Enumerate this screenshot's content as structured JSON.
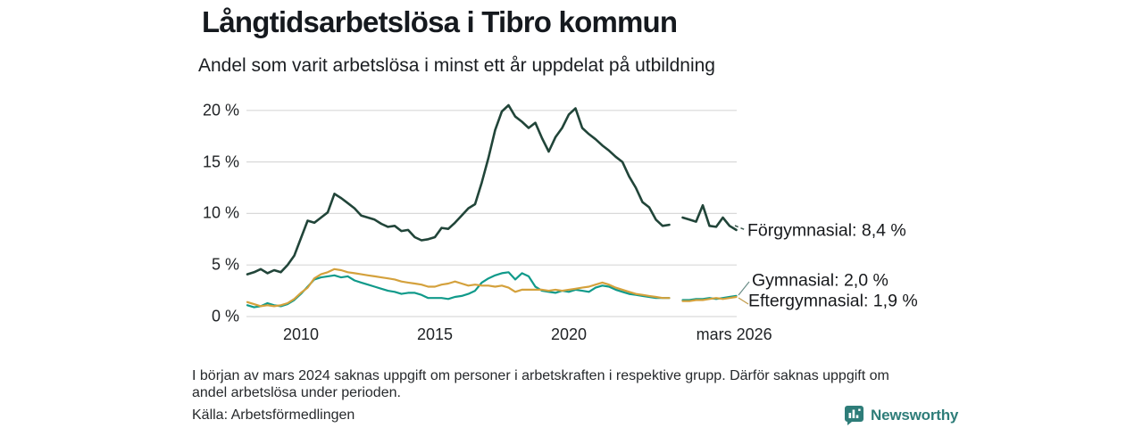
{
  "header": {
    "title": "Långtidsarbetslösa i Tibro kommun",
    "subtitle": "Andel som varit arbetslösa i minst ett år uppdelat på utbildning"
  },
  "chart_data": {
    "type": "line",
    "title": "Långtidsarbetslösa i Tibro kommun",
    "subtitle": "Andel som varit arbetslösa i minst ett år uppdelat på utbildning",
    "unit": "%",
    "grid": "horizontal",
    "legend_position": "right-edge-annotations",
    "xlim": [
      2008,
      2026.4
    ],
    "ylim": [
      0,
      21
    ],
    "missing_period_note": "mars 2024 (gap i samtliga serier)",
    "yticks": [
      {
        "value": 0,
        "label": "0 %"
      },
      {
        "value": 5,
        "label": "5 %"
      },
      {
        "value": 10,
        "label": "10 %"
      },
      {
        "value": 15,
        "label": "15 %"
      },
      {
        "value": 20,
        "label": "20 %"
      }
    ],
    "xticks": [
      {
        "value": 2010,
        "label": "2010"
      },
      {
        "value": 2015,
        "label": "2015"
      },
      {
        "value": 2020,
        "label": "2020"
      },
      {
        "value": 2026.17,
        "label": "mars 2026"
      }
    ],
    "x": [
      2008,
      2008.25,
      2008.5,
      2008.75,
      2009,
      2009.25,
      2009.5,
      2009.75,
      2010,
      2010.25,
      2010.5,
      2010.75,
      2011,
      2011.25,
      2011.5,
      2011.75,
      2012,
      2012.25,
      2012.5,
      2012.75,
      2013,
      2013.25,
      2013.5,
      2013.75,
      2014,
      2014.25,
      2014.5,
      2014.75,
      2015,
      2015.25,
      2015.5,
      2015.75,
      2016,
      2016.25,
      2016.5,
      2016.75,
      2017,
      2017.25,
      2017.5,
      2017.75,
      2018,
      2018.25,
      2018.5,
      2018.75,
      2019,
      2019.25,
      2019.5,
      2019.75,
      2020,
      2020.25,
      2020.5,
      2020.75,
      2021,
      2021.25,
      2021.5,
      2021.75,
      2022,
      2022.25,
      2022.5,
      2022.75,
      2023,
      2023.25,
      2023.5,
      2023.75,
      2024,
      2024.25,
      2024.5,
      2024.75,
      2025,
      2025.25,
      2025.5,
      2025.75,
      2026,
      2026.25
    ],
    "series": [
      {
        "name": "Förgymnasial",
        "annotation": "Förgymnasial: 8,4 %",
        "latest_value": "8,4 %",
        "color": "#214539",
        "values": [
          4.1,
          4.3,
          4.6,
          4.2,
          4.5,
          4.3,
          5.0,
          5.9,
          7.6,
          9.3,
          9.1,
          9.6,
          10.1,
          11.9,
          11.5,
          11.0,
          10.5,
          9.8,
          9.6,
          9.4,
          9.0,
          8.7,
          8.8,
          8.3,
          8.4,
          7.7,
          7.4,
          7.5,
          7.7,
          8.6,
          8.5,
          9.1,
          9.8,
          10.5,
          10.9,
          13.0,
          15.4,
          18.1,
          19.9,
          20.5,
          19.4,
          18.9,
          18.3,
          18.8,
          17.3,
          16.0,
          17.4,
          18.3,
          19.6,
          20.2,
          18.3,
          17.7,
          17.2,
          16.6,
          16.1,
          15.5,
          15.0,
          13.6,
          12.5,
          11.1,
          10.6,
          9.4,
          8.8,
          8.9,
          null,
          9.6,
          9.4,
          9.2,
          10.8,
          8.8,
          8.7,
          9.6,
          8.8,
          8.4
        ]
      },
      {
        "name": "Gymnasial",
        "annotation": "Gymnasial: 2,0 %",
        "latest_value": "2,0 %",
        "color": "#109a8a",
        "values": [
          1.1,
          0.9,
          1.0,
          1.3,
          1.1,
          1.0,
          1.2,
          1.6,
          2.2,
          2.9,
          3.6,
          3.8,
          3.9,
          4.0,
          3.8,
          3.9,
          3.5,
          3.3,
          3.1,
          2.9,
          2.7,
          2.5,
          2.4,
          2.2,
          2.3,
          2.3,
          2.1,
          1.8,
          1.8,
          1.8,
          1.7,
          1.9,
          2.0,
          2.2,
          2.5,
          3.3,
          3.7,
          4.0,
          4.2,
          4.3,
          3.6,
          4.2,
          3.9,
          2.9,
          2.5,
          2.4,
          2.3,
          2.5,
          2.4,
          2.6,
          2.5,
          2.4,
          2.8,
          3.0,
          2.9,
          2.6,
          2.4,
          2.2,
          2.1,
          2.0,
          1.9,
          1.8,
          1.8,
          1.8,
          null,
          1.6,
          1.6,
          1.7,
          1.7,
          1.8,
          1.7,
          1.8,
          1.9,
          2.0
        ]
      },
      {
        "name": "Eftergymnasial",
        "annotation": "Eftergymnasial: 1,9 %",
        "latest_value": "1,9 %",
        "color": "#d4a13c",
        "values": [
          1.4,
          1.2,
          1.0,
          1.1,
          1.0,
          1.1,
          1.3,
          1.7,
          2.3,
          2.8,
          3.7,
          4.1,
          4.3,
          4.6,
          4.5,
          4.3,
          4.2,
          4.1,
          4.0,
          3.9,
          3.8,
          3.7,
          3.6,
          3.4,
          3.3,
          3.2,
          3.1,
          2.9,
          2.9,
          3.1,
          3.2,
          3.4,
          3.2,
          3.0,
          3.1,
          3.0,
          3.0,
          2.9,
          3.0,
          2.8,
          2.4,
          2.6,
          2.6,
          2.6,
          2.6,
          2.5,
          2.6,
          2.5,
          2.6,
          2.7,
          2.8,
          2.9,
          3.1,
          3.3,
          3.1,
          2.8,
          2.6,
          2.4,
          2.2,
          2.1,
          2.0,
          1.9,
          1.8,
          1.8,
          null,
          1.5,
          1.5,
          1.6,
          1.6,
          1.7,
          1.8,
          1.7,
          1.8,
          1.9
        ]
      }
    ]
  },
  "footer": {
    "note_line1": "I början av mars 2024 saknas uppgift om personer i arbetskraften i respektive grupp. Därför saknas uppgift om",
    "note_line2": "andel arbetslösa under perioden.",
    "source": "Källa: Arbetsförmedlingen",
    "logo_text": "Newsworthy"
  },
  "colors": {
    "grid": "#d9d9d9",
    "text": "#16191d",
    "logo": "#2e7d79"
  }
}
